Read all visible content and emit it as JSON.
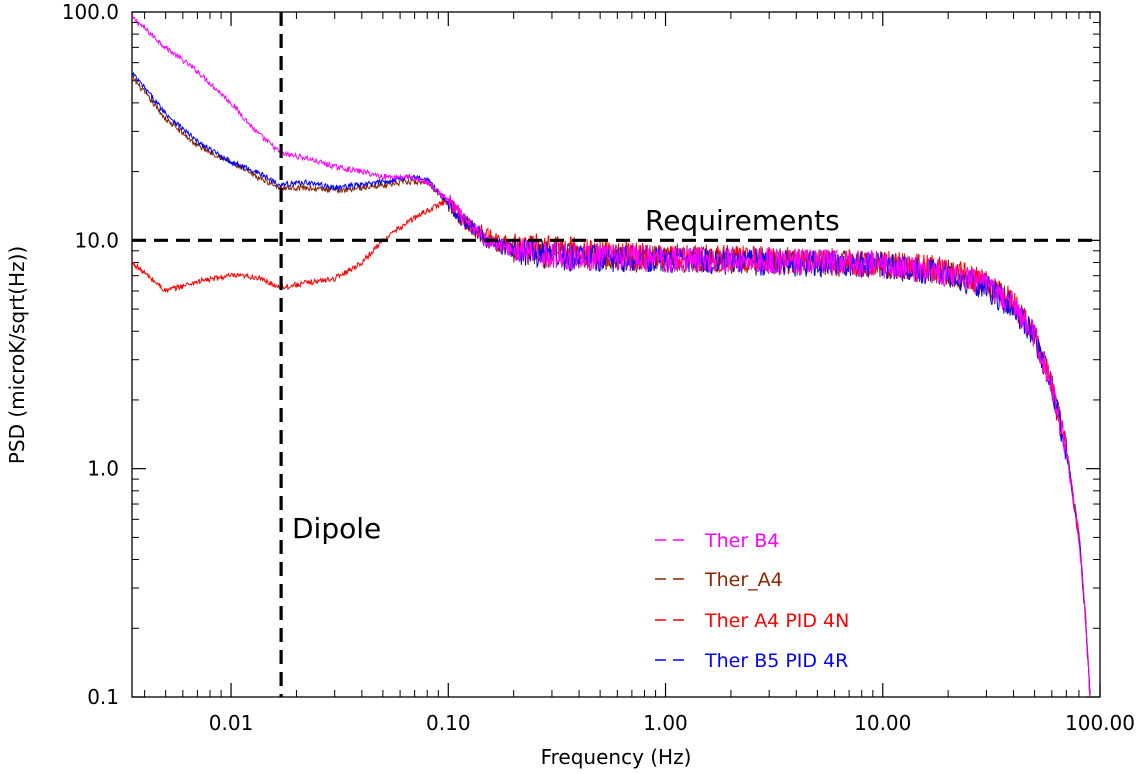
{
  "chart_data": {
    "type": "line",
    "title": "",
    "xlabel": "Frequency (Hz)",
    "ylabel": "PSD (microK/sqrt(Hz))",
    "xscale": "log",
    "yscale": "log",
    "xlim": [
      0.0035,
      100
    ],
    "ylim": [
      0.1,
      100
    ],
    "grid": false,
    "legend_position": "bottom-center",
    "x_ticks": [
      {
        "value": 0.01,
        "label": "0.01"
      },
      {
        "value": 0.1,
        "label": "0.10"
      },
      {
        "value": 1,
        "label": "1.00"
      },
      {
        "value": 10,
        "label": "10.00"
      },
      {
        "value": 100,
        "label": "100.00"
      }
    ],
    "y_ticks": [
      {
        "value": 0.1,
        "label": "0.1"
      },
      {
        "value": 1,
        "label": "1.0"
      },
      {
        "value": 10,
        "label": "10.0"
      },
      {
        "value": 100,
        "label": "100.0"
      }
    ],
    "reference_lines": [
      {
        "orientation": "horizontal",
        "value": 10,
        "label": "Requirements",
        "style": "dashed",
        "color": "#000000"
      },
      {
        "orientation": "vertical",
        "value": 0.017,
        "label": "Dipole",
        "style": "dashed",
        "color": "#000000"
      }
    ],
    "series": [
      {
        "name": "Ther B4",
        "color": "#ff00ff",
        "x": [
          0.0035,
          0.005,
          0.007,
          0.01,
          0.013,
          0.017,
          0.022,
          0.03,
          0.04,
          0.05,
          0.065,
          0.08,
          0.1,
          0.12,
          0.15,
          0.2,
          0.3,
          0.5,
          1,
          2,
          5,
          10,
          20,
          30,
          40,
          50,
          60,
          70,
          80,
          85,
          90
        ],
        "y": [
          95,
          70,
          55,
          40,
          30,
          24,
          23,
          21,
          20,
          19,
          19,
          18,
          15,
          12,
          10,
          9,
          8.6,
          8.4,
          8.3,
          8.2,
          8.0,
          7.8,
          7.2,
          6.3,
          5.2,
          3.8,
          2.3,
          1.2,
          0.5,
          0.25,
          0.1
        ]
      },
      {
        "name": "Ther_A4",
        "color": "#8b2500",
        "x": [
          0.0035,
          0.005,
          0.007,
          0.01,
          0.013,
          0.017,
          0.022,
          0.03,
          0.04,
          0.05,
          0.065,
          0.08,
          0.1,
          0.12,
          0.15,
          0.2,
          0.3,
          0.5,
          1,
          2,
          5,
          10,
          20,
          30,
          40,
          50,
          60,
          70,
          80,
          85,
          90
        ],
        "y": [
          52,
          34,
          26,
          22,
          19,
          17,
          17,
          16.5,
          17,
          17.5,
          18,
          18,
          14.5,
          12,
          10,
          9,
          8.6,
          8.4,
          8.3,
          8.2,
          8.0,
          7.8,
          7.2,
          6.3,
          5.2,
          3.8,
          2.3,
          1.2,
          0.5,
          0.25,
          0.1
        ]
      },
      {
        "name": "Ther A4 PID 4N",
        "color": "#ff0000",
        "x": [
          0.0035,
          0.005,
          0.007,
          0.01,
          0.013,
          0.017,
          0.022,
          0.03,
          0.04,
          0.05,
          0.065,
          0.08,
          0.1,
          0.12,
          0.15,
          0.2,
          0.3,
          0.5,
          1,
          2,
          5,
          10,
          20,
          30,
          40,
          50,
          60,
          70,
          80,
          85,
          90
        ],
        "y": [
          8,
          6.0,
          6.6,
          7.0,
          6.9,
          6.2,
          6.5,
          6.8,
          8.0,
          10.0,
          12.0,
          13.5,
          15.0,
          12.0,
          10.5,
          9.5,
          9.2,
          8.8,
          8.5,
          8.3,
          8.1,
          7.9,
          7.4,
          6.5,
          5.3,
          3.9,
          2.3,
          1.2,
          0.5,
          0.25,
          0.1
        ]
      },
      {
        "name": "Ther B5 PID 4R",
        "color": "#0000ff",
        "x": [
          0.0035,
          0.005,
          0.007,
          0.01,
          0.013,
          0.017,
          0.022,
          0.03,
          0.04,
          0.05,
          0.065,
          0.08,
          0.1,
          0.12,
          0.15,
          0.2,
          0.3,
          0.5,
          1,
          2,
          5,
          10,
          20,
          30,
          40,
          50,
          60,
          70,
          80,
          85,
          90
        ],
        "y": [
          54,
          36,
          27,
          22,
          20,
          17.5,
          18,
          17,
          17.5,
          18,
          19,
          18.5,
          14.5,
          12,
          10,
          9,
          8.5,
          8.3,
          8.2,
          8.1,
          7.9,
          7.7,
          7.1,
          6.2,
          5.1,
          3.7,
          2.3,
          1.2,
          0.5,
          0.25,
          0.1
        ]
      }
    ]
  }
}
